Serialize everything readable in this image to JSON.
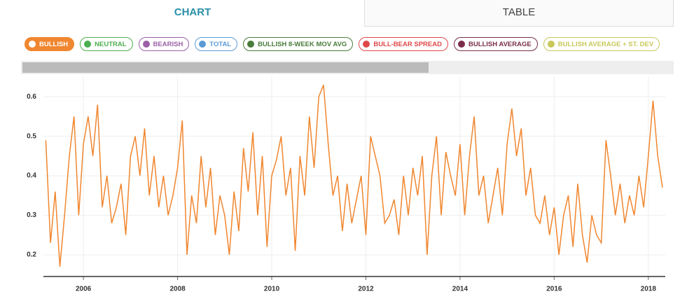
{
  "tabs": [
    "CHART",
    "TABLE"
  ],
  "legend_items": [
    {
      "name": "NEUTRAL",
      "color": "#4caf50"
    },
    {
      "name": "BEARISH",
      "color": "#9c5fa8"
    },
    {
      "name": "TOTAL",
      "color": "#5b9bd5"
    },
    {
      "name": "BULLISH 8-WEEK MOV AVG",
      "color": "#4a7c3a"
    },
    {
      "name": "BULL-BEAR SPREAD",
      "color": "#e04848"
    },
    {
      "name": "BULLISH AVERAGE",
      "color": "#7a2e4a"
    },
    {
      "name": "BULLISH AVERAGE + ST. DEV",
      "color": "#c8c85a"
    }
  ],
  "chart_data": {
    "type": "line",
    "x": [
      2005.2,
      2005.3,
      2005.4,
      2005.5,
      2005.6,
      2005.7,
      2005.8,
      2005.9,
      2006.0,
      2006.1,
      2006.2,
      2006.3,
      2006.4,
      2006.5,
      2006.6,
      2006.7,
      2006.8,
      2006.9,
      2007.0,
      2007.1,
      2007.2,
      2007.3,
      2007.4,
      2007.5,
      2007.6,
      2007.7,
      2007.8,
      2007.9,
      2008.0,
      2008.1,
      2008.2,
      2008.3,
      2008.4,
      2008.5,
      2008.6,
      2008.7,
      2008.8,
      2008.9,
      2009.0,
      2009.1,
      2009.2,
      2009.3,
      2009.4,
      2009.5,
      2009.6,
      2009.7,
      2009.8,
      2009.9,
      2010.0,
      2010.1,
      2010.2,
      2010.3,
      2010.4,
      2010.5,
      2010.6,
      2010.7,
      2010.8,
      2010.9,
      2011.0,
      2011.1,
      2011.2,
      2011.3,
      2011.4,
      2011.5,
      2011.6,
      2011.7,
      2011.8,
      2011.9,
      2012.0,
      2012.1,
      2012.2,
      2012.3,
      2012.4,
      2012.5,
      2012.6,
      2012.7,
      2012.8,
      2012.9,
      2013.0,
      2013.1,
      2013.2,
      2013.3,
      2013.4,
      2013.5,
      2013.6,
      2013.7,
      2013.8,
      2013.9,
      2014.0,
      2014.1,
      2014.2,
      2014.3,
      2014.4,
      2014.5,
      2014.6,
      2014.7,
      2014.8,
      2014.9,
      2015.0,
      2015.1,
      2015.2,
      2015.3,
      2015.4,
      2015.5,
      2015.6,
      2015.7,
      2015.8,
      2015.9,
      2016.0,
      2016.1,
      2016.2,
      2016.3,
      2016.4,
      2016.5,
      2016.6,
      2016.7,
      2016.8,
      2016.9,
      2017.0,
      2017.1,
      2017.2,
      2017.3,
      2017.4,
      2017.5,
      2017.6,
      2017.7,
      2017.8,
      2017.9,
      2018.0,
      2018.1,
      2018.2,
      2018.3
    ],
    "series": [
      {
        "name": "BULLISH",
        "color": "#f0862f",
        "values": [
          0.49,
          0.23,
          0.36,
          0.17,
          0.3,
          0.45,
          0.55,
          0.3,
          0.48,
          0.55,
          0.45,
          0.58,
          0.32,
          0.4,
          0.28,
          0.32,
          0.38,
          0.25,
          0.45,
          0.5,
          0.4,
          0.52,
          0.35,
          0.45,
          0.32,
          0.4,
          0.3,
          0.35,
          0.42,
          0.54,
          0.2,
          0.35,
          0.28,
          0.45,
          0.32,
          0.42,
          0.25,
          0.35,
          0.3,
          0.2,
          0.36,
          0.26,
          0.47,
          0.36,
          0.51,
          0.3,
          0.45,
          0.22,
          0.4,
          0.44,
          0.5,
          0.35,
          0.42,
          0.21,
          0.45,
          0.35,
          0.55,
          0.42,
          0.6,
          0.63,
          0.48,
          0.35,
          0.4,
          0.26,
          0.38,
          0.28,
          0.34,
          0.4,
          0.25,
          0.5,
          0.45,
          0.4,
          0.28,
          0.3,
          0.34,
          0.25,
          0.4,
          0.3,
          0.42,
          0.35,
          0.45,
          0.2,
          0.4,
          0.5,
          0.3,
          0.46,
          0.4,
          0.35,
          0.48,
          0.3,
          0.45,
          0.55,
          0.35,
          0.4,
          0.28,
          0.35,
          0.42,
          0.3,
          0.48,
          0.57,
          0.45,
          0.52,
          0.35,
          0.42,
          0.3,
          0.28,
          0.35,
          0.25,
          0.32,
          0.2,
          0.3,
          0.35,
          0.22,
          0.38,
          0.25,
          0.18,
          0.3,
          0.25,
          0.23,
          0.49,
          0.4,
          0.3,
          0.38,
          0.28,
          0.35,
          0.3,
          0.4,
          0.32,
          0.45,
          0.59,
          0.45,
          0.37
        ]
      }
    ],
    "xlim": [
      2005.15,
      2018.36
    ],
    "ylim": [
      0.145,
      0.65
    ],
    "xticks": [
      2006,
      2008,
      2010,
      2012,
      2014,
      2016,
      2018
    ],
    "yticks": [
      0.2,
      0.3,
      0.4,
      0.5,
      0.6
    ],
    "grid": true
  }
}
